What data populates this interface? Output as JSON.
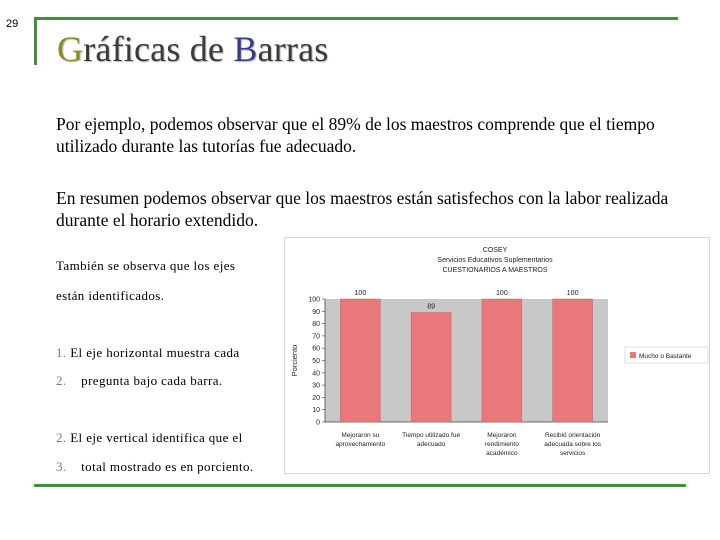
{
  "slide": {
    "number": "29",
    "title_first": "G",
    "title_part1": "ráficas de ",
    "title_b": "B",
    "title_part2": "arras",
    "paragraph1": "Por ejemplo, podemos observar que el 89% de los maestros comprende que el tiempo utilizado durante las tutorías fue adecuado.",
    "paragraph2": "En resumen podemos observar que los maestros están satisfechos con la labor realizada durante el horario extendido.",
    "note_line1": "También se observa que los ejes",
    "note_line2": "están identificados.",
    "list": [
      {
        "num": "1.",
        "text": "El eje horizontal muestra cada"
      },
      {
        "num": "2.",
        "text": "pregunta bajo cada barra."
      },
      {
        "num": "2.",
        "text": "El eje vertical identifica que el"
      },
      {
        "num": "3.",
        "text": "total mostrado es en porciento."
      }
    ]
  },
  "chart_data": {
    "type": "bar",
    "title_lines": [
      "COSEY",
      "Servicios Educativos Suplementarios",
      "CUESTIONARIOS A MAESTROS"
    ],
    "categories": [
      [
        "Mejoraron su",
        "aprovechamiento"
      ],
      [
        "Tiempo utilizado fue",
        "adecuado"
      ],
      [
        "Mejoraron",
        "rendimiento",
        "académico"
      ],
      [
        "Recibió orientación",
        "adecuada sobre los",
        "servicios"
      ]
    ],
    "series": [
      {
        "name": "Mucho o Bastante",
        "values": [
          100,
          89,
          100,
          100
        ],
        "color": "#e8787b"
      }
    ],
    "ylabel": "Porciento",
    "ylim": [
      0,
      100
    ],
    "yticks": [
      0,
      10,
      20,
      30,
      40,
      50,
      60,
      70,
      80,
      90,
      100
    ],
    "legend_position": "right",
    "colors": {
      "bar_fill": "#e8787b",
      "plot_area": "#c8c8c8",
      "bar_edge": "#b85a5e"
    }
  }
}
